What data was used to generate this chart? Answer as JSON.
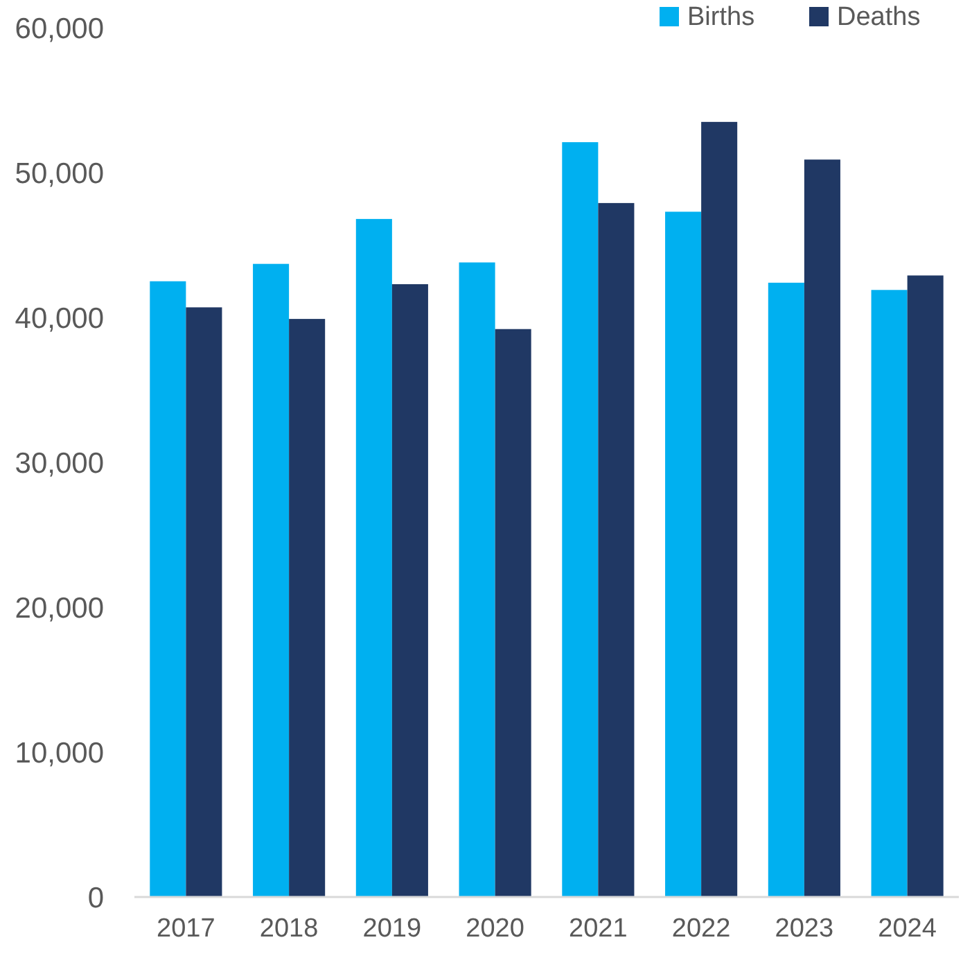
{
  "chart_data": {
    "type": "bar",
    "categories": [
      "2017",
      "2018",
      "2019",
      "2020",
      "2021",
      "2022",
      "2023",
      "2024"
    ],
    "series": [
      {
        "name": "Births",
        "color": "#00b0f0",
        "values": [
          42500,
          43700,
          46800,
          43800,
          52100,
          47300,
          42400,
          41900
        ]
      },
      {
        "name": "Deaths",
        "color": "#203864",
        "values": [
          40700,
          39900,
          42300,
          39200,
          47900,
          53500,
          50900,
          42900
        ]
      }
    ],
    "ylim": [
      0,
      60000
    ],
    "yticks": [
      {
        "value": 0,
        "label": "0"
      },
      {
        "value": 10000,
        "label": "10,000"
      },
      {
        "value": 20000,
        "label": "20,000"
      },
      {
        "value": 30000,
        "label": "30,000"
      },
      {
        "value": 40000,
        "label": "40,000"
      },
      {
        "value": 50000,
        "label": "50,000"
      },
      {
        "value": 60000,
        "label": "60,000"
      }
    ],
    "grid": false,
    "legend": "top right"
  }
}
